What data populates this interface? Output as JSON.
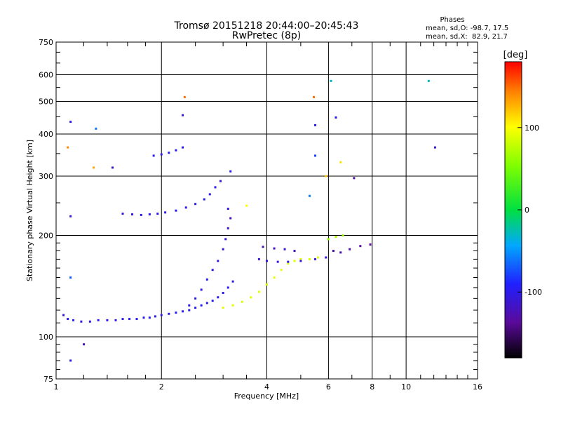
{
  "chart_data": {
    "type": "scatter",
    "title": "Tromsø 20151218 20:44:00–20:45:43",
    "subtitle": "RwPretec (8p)",
    "xlabel": "Frequency [MHz]",
    "ylabel": "Stationary phase Virtual Height [km]",
    "xscale": "log",
    "yscale": "log",
    "xlim": [
      1,
      16
    ],
    "ylim": [
      75,
      750
    ],
    "x_ticks": [
      1,
      2,
      4,
      6,
      8,
      10,
      16
    ],
    "y_ticks": [
      75,
      100,
      200,
      300,
      400,
      500,
      600,
      750
    ],
    "grid": true,
    "stats": {
      "header": "Phases",
      "o_line": "mean, sd,O: -98.7, 17.5",
      "x_line": "mean, sd,X:  82.9, 21.7"
    },
    "colorbar": {
      "label": "[deg]",
      "range": [
        -180,
        180
      ],
      "ticks": [
        100,
        0,
        -100
      ]
    },
    "series": [
      {
        "points": [
          [
            1.05,
            116,
            -105
          ],
          [
            1.08,
            113,
            -100
          ],
          [
            1.12,
            112,
            -95
          ],
          [
            1.18,
            111,
            -105
          ],
          [
            1.25,
            111,
            -100
          ],
          [
            1.32,
            112,
            -95
          ],
          [
            1.4,
            112,
            -100
          ],
          [
            1.48,
            112,
            -105
          ],
          [
            1.55,
            113,
            -100
          ],
          [
            1.62,
            113,
            -95
          ],
          [
            1.7,
            113,
            -100
          ],
          [
            1.78,
            114,
            -100
          ],
          [
            1.85,
            114,
            -95
          ],
          [
            1.92,
            115,
            -100
          ],
          [
            2.0,
            116,
            -100
          ],
          [
            2.1,
            117,
            -100
          ],
          [
            2.2,
            118,
            -95
          ],
          [
            2.3,
            119,
            -100
          ],
          [
            2.4,
            120,
            -100
          ],
          [
            2.5,
            122,
            -100
          ],
          [
            2.6,
            124,
            -95
          ],
          [
            2.7,
            126,
            -100
          ],
          [
            2.8,
            128,
            -95
          ],
          [
            2.9,
            131,
            -100
          ],
          [
            3.0,
            135,
            -100
          ],
          [
            3.1,
            140,
            -100
          ],
          [
            3.2,
            146,
            -95
          ]
        ]
      },
      {
        "points": [
          [
            2.4,
            124,
            -100
          ],
          [
            2.5,
            130,
            -100
          ],
          [
            2.6,
            138,
            -100
          ],
          [
            2.7,
            148,
            -100
          ],
          [
            2.8,
            158,
            -100
          ],
          [
            2.9,
            168,
            -105
          ],
          [
            3.0,
            182,
            -110
          ],
          [
            3.05,
            195,
            -110
          ],
          [
            3.1,
            210,
            -115
          ],
          [
            3.15,
            225,
            -120
          ],
          [
            3.1,
            240,
            -110
          ]
        ]
      },
      {
        "points": [
          [
            1.55,
            232,
            -110
          ],
          [
            1.65,
            231,
            -105
          ],
          [
            1.75,
            230,
            -100
          ],
          [
            1.85,
            231,
            -100
          ],
          [
            1.95,
            232,
            -100
          ],
          [
            2.05,
            234,
            -100
          ],
          [
            2.2,
            237,
            -100
          ],
          [
            2.35,
            242,
            -100
          ],
          [
            2.5,
            248,
            -100
          ],
          [
            2.65,
            256,
            -100
          ],
          [
            2.75,
            265,
            -100
          ],
          [
            2.85,
            278,
            -100
          ],
          [
            2.95,
            290,
            -105
          ]
        ]
      },
      {
        "points": [
          [
            1.9,
            345,
            -100
          ],
          [
            2.0,
            348,
            -100
          ],
          [
            2.1,
            352,
            -100
          ],
          [
            2.2,
            358,
            -100
          ],
          [
            2.3,
            365,
            -100
          ]
        ]
      },
      {
        "points": [
          [
            3.0,
            122,
            90
          ],
          [
            3.2,
            124,
            90
          ],
          [
            3.4,
            127,
            85
          ],
          [
            3.6,
            131,
            90
          ],
          [
            3.8,
            136,
            90
          ],
          [
            4.0,
            143,
            85
          ],
          [
            4.2,
            150,
            90
          ],
          [
            4.4,
            158,
            90
          ],
          [
            4.6,
            165,
            85
          ],
          [
            4.8,
            168,
            90
          ],
          [
            5.0,
            170,
            90
          ],
          [
            5.3,
            170,
            85
          ],
          [
            5.6,
            172,
            90
          ]
        ]
      },
      {
        "points": [
          [
            3.8,
            170,
            -110
          ],
          [
            4.0,
            168,
            -105
          ],
          [
            4.3,
            167,
            -105
          ],
          [
            4.6,
            167,
            -100
          ],
          [
            5.0,
            168,
            -105
          ],
          [
            5.5,
            170,
            -110
          ],
          [
            5.9,
            172,
            -105
          ]
        ]
      },
      {
        "points": [
          [
            3.9,
            185,
            -120
          ],
          [
            4.2,
            183,
            -120
          ],
          [
            4.5,
            182,
            -115
          ],
          [
            4.8,
            180,
            -120
          ]
        ]
      },
      {
        "points": [
          [
            6.2,
            180,
            -125
          ],
          [
            6.5,
            178,
            -125
          ],
          [
            6.9,
            182,
            -130
          ],
          [
            7.4,
            186,
            -135
          ],
          [
            7.9,
            188,
            -135
          ]
        ]
      },
      {
        "points": [
          [
            6.0,
            195,
            60
          ],
          [
            6.3,
            198,
            70
          ],
          [
            6.6,
            200,
            60
          ]
        ]
      },
      {
        "points": [
          [
            6.1,
            575,
            -30
          ],
          [
            11.6,
            575,
            -30
          ],
          [
            12.1,
            365,
            -110
          ],
          [
            5.5,
            425,
            -100
          ],
          [
            2.3,
            455,
            -110
          ],
          [
            2.33,
            515,
            150
          ],
          [
            5.45,
            515,
            150
          ],
          [
            1.1,
            435,
            -100
          ],
          [
            1.3,
            415,
            -60
          ],
          [
            1.08,
            365,
            140
          ],
          [
            1.28,
            318,
            130
          ],
          [
            1.1,
            228,
            -110
          ],
          [
            1.1,
            85,
            -100
          ],
          [
            1.2,
            95,
            -120
          ],
          [
            1.1,
            150,
            -70
          ],
          [
            1.45,
            318,
            -110
          ],
          [
            6.3,
            448,
            -100
          ],
          [
            6.5,
            330,
            110
          ],
          [
            5.9,
            300,
            120
          ],
          [
            7.1,
            296,
            -130
          ],
          [
            3.15,
            310,
            -100
          ],
          [
            3.5,
            245,
            100
          ],
          [
            5.5,
            345,
            -80
          ],
          [
            5.3,
            262,
            -60
          ]
        ]
      }
    ]
  }
}
